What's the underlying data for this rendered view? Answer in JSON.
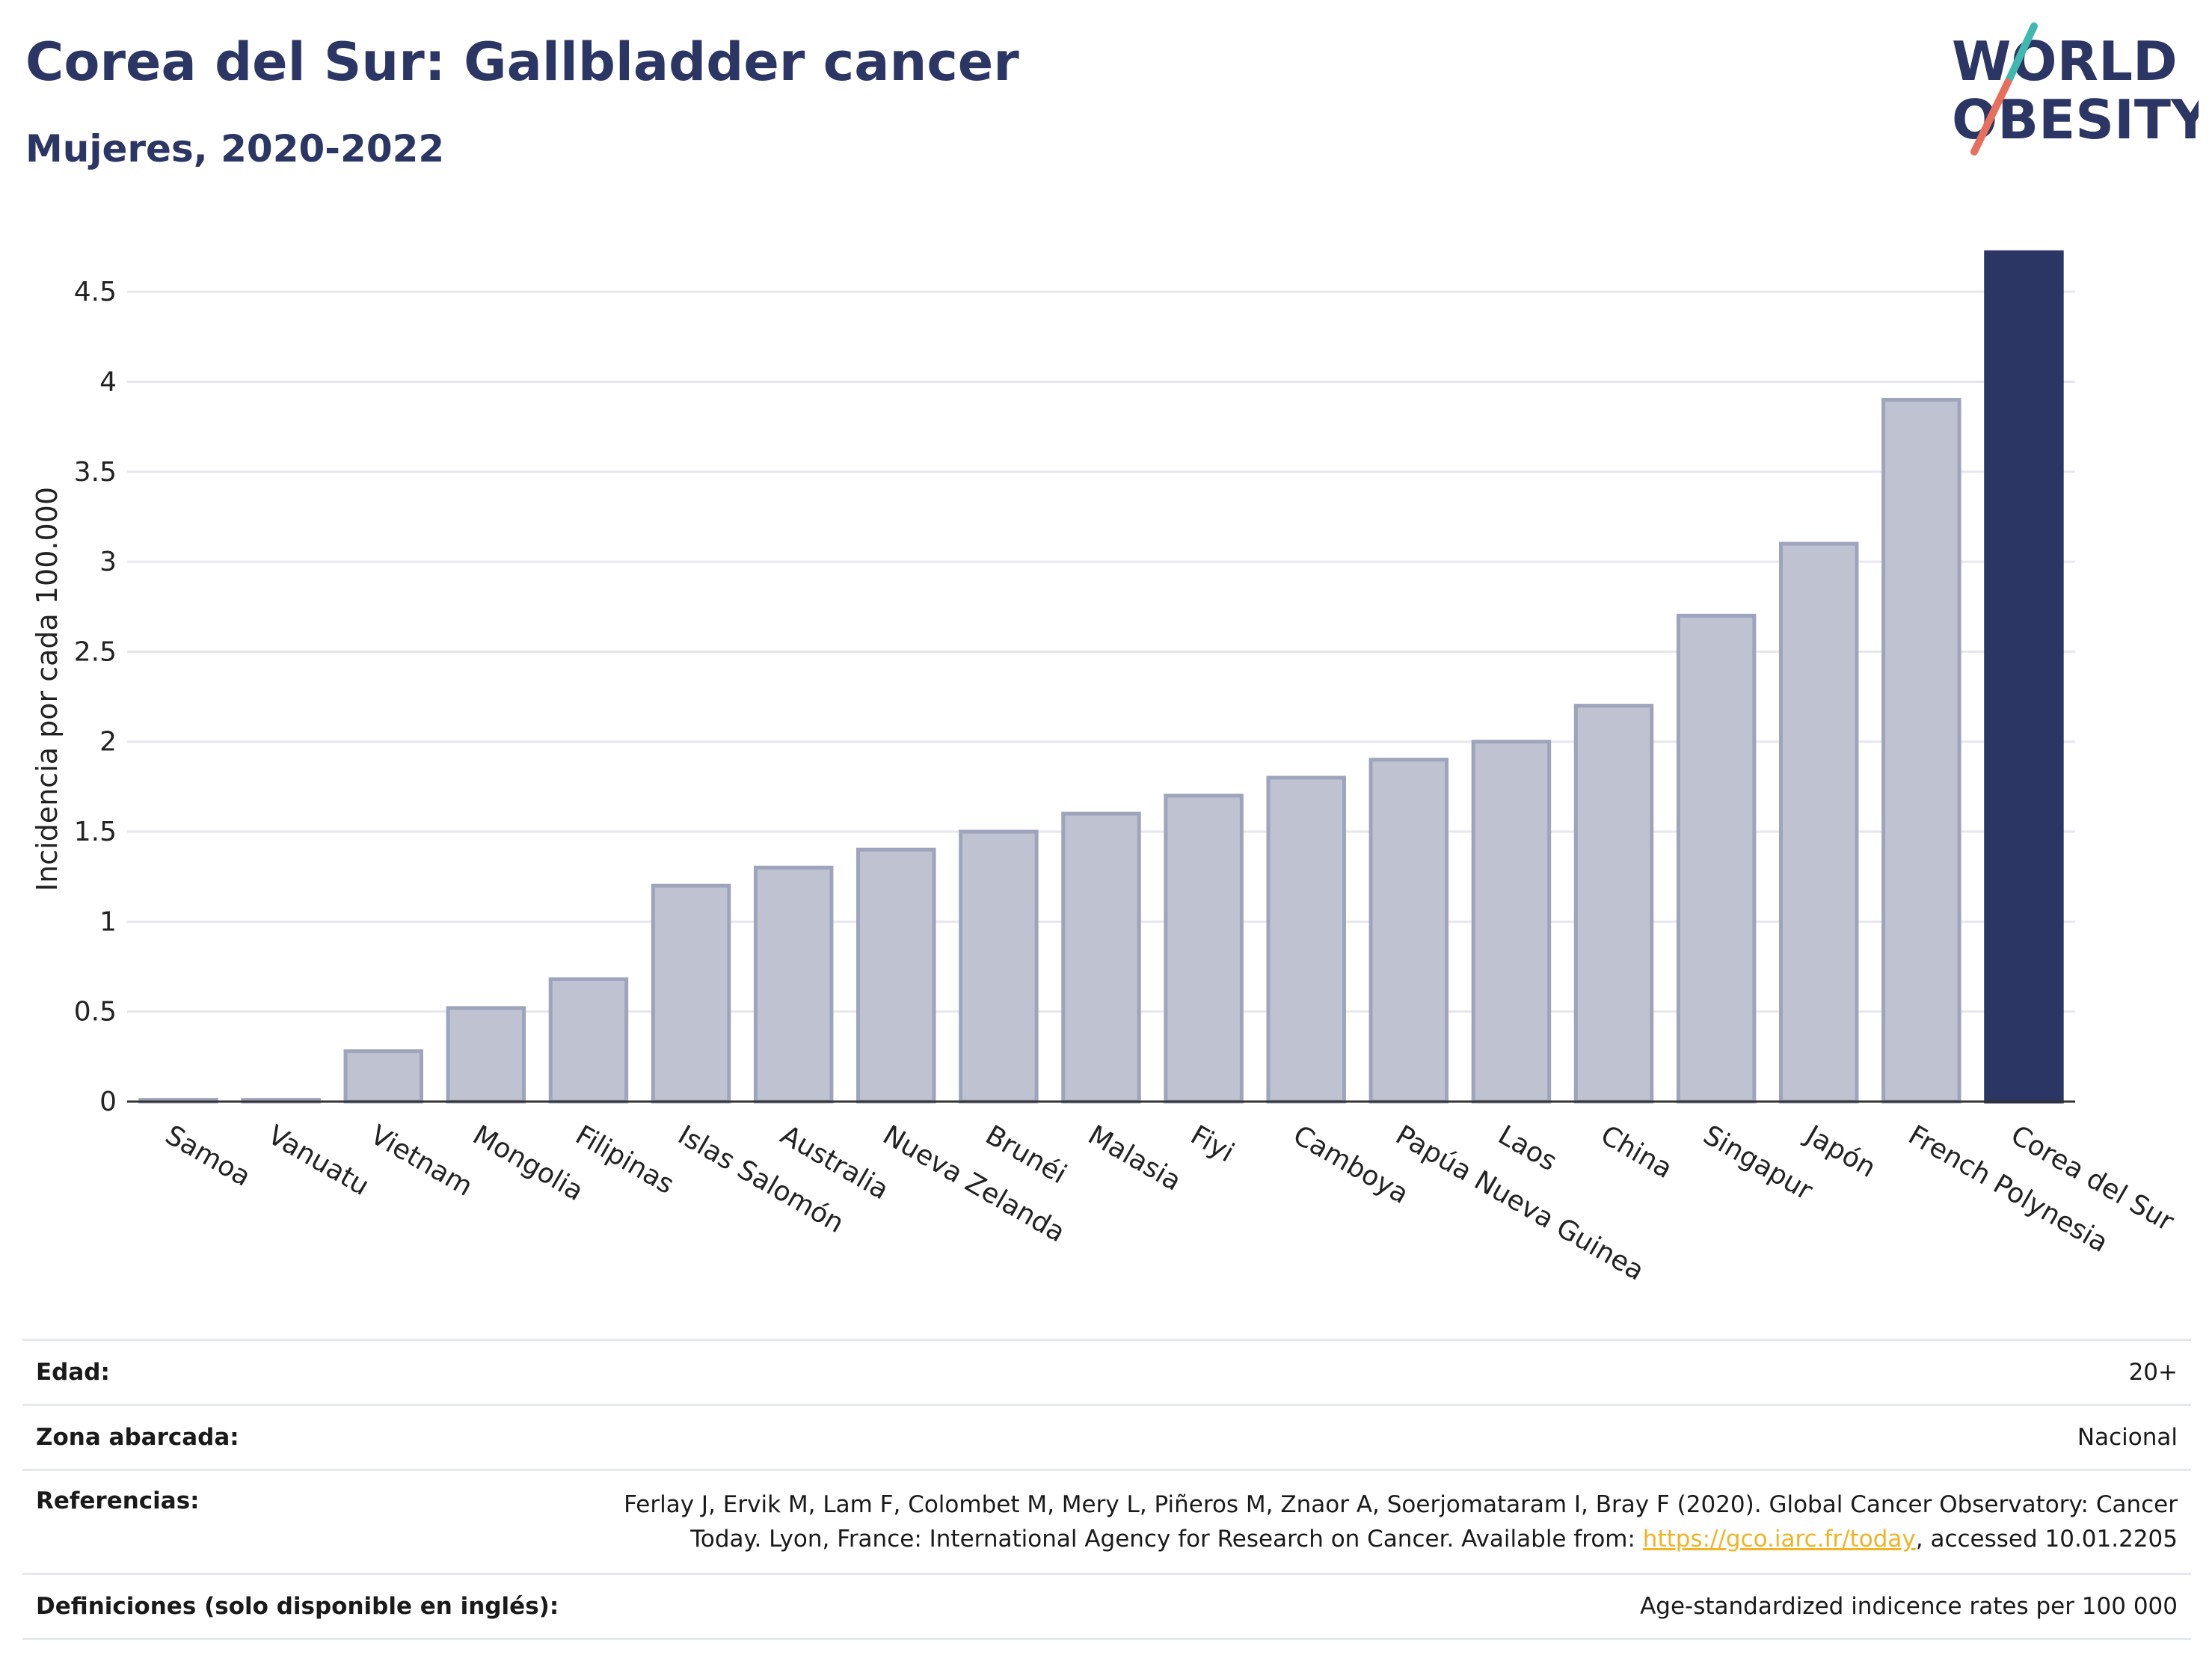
{
  "header": {
    "title": "Corea del Sur: Gallbladder cancer",
    "subtitle": "Mujeres, 2020-2022"
  },
  "logo": {
    "line1": "WORLD",
    "line2": "OBESITY"
  },
  "colors": {
    "highlight": "#2b3664",
    "bar": "#bfc3d1",
    "bar_border": "#9ea4bb",
    "accent_teal": "#3fb8b0",
    "accent_coral": "#e86f5c"
  },
  "chart_data": {
    "type": "bar",
    "ylabel": "Incidencia por cada 100.000",
    "ylim": [
      0,
      4.75
    ],
    "yticks": [
      0,
      0.5,
      1,
      1.5,
      2,
      2.5,
      3,
      3.5,
      4,
      4.5
    ],
    "ytick_labels": [
      "0",
      "0.5",
      "1",
      "1.5",
      "2",
      "2.5",
      "3",
      "3.5",
      "4",
      "4.5"
    ],
    "categories": [
      "Samoa",
      "Vanuatu",
      "Vietnam",
      "Mongolia",
      "Filipinas",
      "Islas Salomón",
      "Australia",
      "Nueva Zelanda",
      "Brunéi",
      "Malasia",
      "Fiyi",
      "Camboya",
      "Papúa Nueva Guinea",
      "Laos",
      "China",
      "Singapur",
      "Japón",
      "French Polynesia",
      "Corea del Sur"
    ],
    "values": [
      0.01,
      0.01,
      0.28,
      0.52,
      0.68,
      1.2,
      1.3,
      1.4,
      1.5,
      1.6,
      1.7,
      1.8,
      1.9,
      2.0,
      2.2,
      2.7,
      3.1,
      3.9,
      4.72
    ],
    "highlight": "Corea del Sur",
    "grid": true
  },
  "meta": [
    {
      "key": "Edad:",
      "value": "20+"
    },
    {
      "key": "Zona abarcada:",
      "value": "Nacional"
    },
    {
      "key": "Referencias:",
      "value_line1": "Ferlay J, Ervik M, Lam F, Colombet M, Mery L, Piñeros M, Znaor A, Soerjomataram I, Bray F (2020). Global Cancer Observatory: Cancer",
      "value_line2_pre": "Today. Lyon, France: International Agency for Research on Cancer. Available from: ",
      "link": "https://gco.iarc.fr/today",
      "value_line2_post": ", accessed 10.01.2205"
    },
    {
      "key": "Definiciones (solo disponible en inglés):",
      "value": "Age-standardized indicence rates per 100 000"
    }
  ]
}
